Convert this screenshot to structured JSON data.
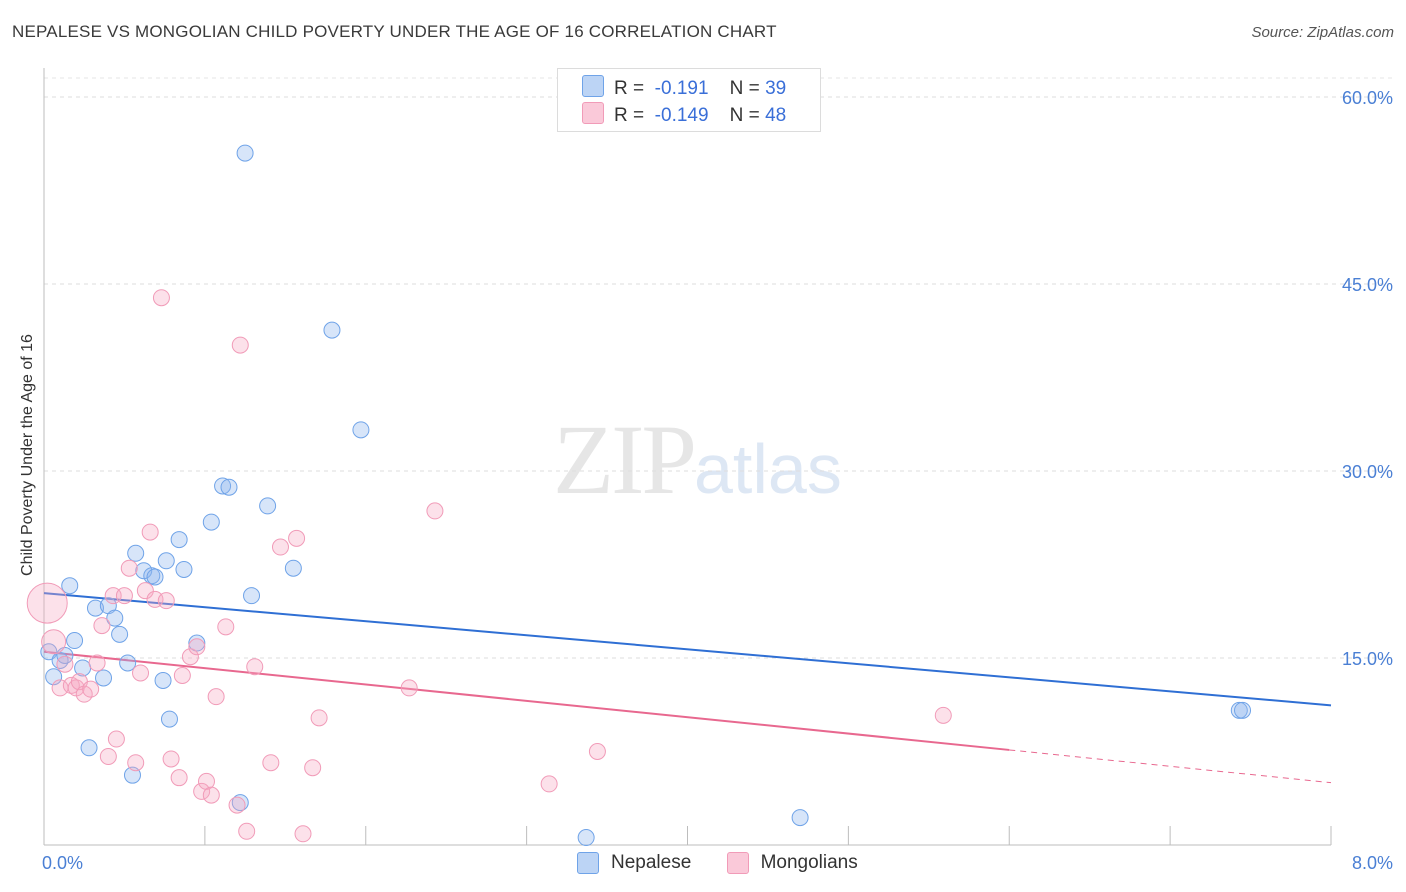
{
  "header": {
    "title": "NEPALESE VS MONGOLIAN CHILD POVERTY UNDER THE AGE OF 16 CORRELATION CHART",
    "source": "Source: ZipAtlas.com"
  },
  "watermark": {
    "zip": "ZIP",
    "atlas": "atlas"
  },
  "legend": {
    "r_label": "R =",
    "n_label": "N =",
    "rows": [
      {
        "r": "-0.191",
        "n": "39"
      },
      {
        "r": "-0.149",
        "n": "48"
      }
    ]
  },
  "chart_data": {
    "type": "scatter",
    "title": "NEPALESE VS MONGOLIAN CHILD POVERTY UNDER THE AGE OF 16 CORRELATION CHART",
    "xlabel": "",
    "ylabel": "Child Poverty Under the Age of 16",
    "xlim": [
      0,
      8
    ],
    "ylim": [
      0,
      60
    ],
    "x_tick_labels": [
      "0.0%",
      "8.0%"
    ],
    "y_ticks": [
      15,
      30,
      45,
      60
    ],
    "y_tick_labels": [
      "15.0%",
      "30.0%",
      "45.0%",
      "60.0%"
    ],
    "grid": true,
    "legend_position": "top-center",
    "colors": {
      "nepalese": "#6fa3e8",
      "mongolians": "#f19bb8",
      "nepalese_line": "#2f6fd4",
      "mongolians_line": "#e8688f"
    },
    "series": [
      {
        "name": "Nepalese",
        "r": -0.191,
        "n": 39,
        "trend": {
          "x0": 0,
          "y0": 20.2,
          "x1": 8,
          "y1": 11.2,
          "solid_until": 8
        },
        "points": [
          [
            0.03,
            15.5
          ],
          [
            0.06,
            13.5
          ],
          [
            0.1,
            14.8
          ],
          [
            0.13,
            15.2
          ],
          [
            0.16,
            20.8
          ],
          [
            0.19,
            16.4
          ],
          [
            0.24,
            14.2
          ],
          [
            0.28,
            7.8
          ],
          [
            0.32,
            19.0
          ],
          [
            0.37,
            13.4
          ],
          [
            0.4,
            19.2
          ],
          [
            0.44,
            18.2
          ],
          [
            0.47,
            16.9
          ],
          [
            0.52,
            14.6
          ],
          [
            0.55,
            5.6
          ],
          [
            0.57,
            23.4
          ],
          [
            0.62,
            22.0
          ],
          [
            0.67,
            21.6
          ],
          [
            0.69,
            21.5
          ],
          [
            0.74,
            13.2
          ],
          [
            0.76,
            22.8
          ],
          [
            0.78,
            10.1
          ],
          [
            0.84,
            24.5
          ],
          [
            0.87,
            22.1
          ],
          [
            0.95,
            16.2
          ],
          [
            1.04,
            25.9
          ],
          [
            1.11,
            28.8
          ],
          [
            1.15,
            28.7
          ],
          [
            1.22,
            3.4
          ],
          [
            1.25,
            55.5
          ],
          [
            1.29,
            20.0
          ],
          [
            1.39,
            27.2
          ],
          [
            1.55,
            22.2
          ],
          [
            1.79,
            41.3
          ],
          [
            1.97,
            33.3
          ],
          [
            3.37,
            0.6
          ],
          [
            4.7,
            2.2
          ],
          [
            7.43,
            10.8
          ],
          [
            7.45,
            10.8
          ]
        ]
      },
      {
        "name": "Mongolians",
        "r": -0.149,
        "n": 48,
        "trend": {
          "x0": 0,
          "y0": 15.5,
          "x1": 8,
          "y1": 5.0,
          "solid_until": 6.0
        },
        "points": [
          [
            0.02,
            19.4
          ],
          [
            0.06,
            16.3
          ],
          [
            0.1,
            12.6
          ],
          [
            0.13,
            14.5
          ],
          [
            0.17,
            12.8
          ],
          [
            0.2,
            12.6
          ],
          [
            0.22,
            13.1
          ],
          [
            0.25,
            12.1
          ],
          [
            0.29,
            12.5
          ],
          [
            0.33,
            14.6
          ],
          [
            0.36,
            17.6
          ],
          [
            0.4,
            7.1
          ],
          [
            0.43,
            20.0
          ],
          [
            0.45,
            8.5
          ],
          [
            0.5,
            20.0
          ],
          [
            0.53,
            22.2
          ],
          [
            0.57,
            6.6
          ],
          [
            0.6,
            13.8
          ],
          [
            0.63,
            20.4
          ],
          [
            0.66,
            25.1
          ],
          [
            0.69,
            19.7
          ],
          [
            0.73,
            43.9
          ],
          [
            0.76,
            19.6
          ],
          [
            0.79,
            6.9
          ],
          [
            0.84,
            5.4
          ],
          [
            0.86,
            13.6
          ],
          [
            0.91,
            15.1
          ],
          [
            0.95,
            15.9
          ],
          [
            0.98,
            4.3
          ],
          [
            1.01,
            5.1
          ],
          [
            1.04,
            4.0
          ],
          [
            1.07,
            11.9
          ],
          [
            1.13,
            17.5
          ],
          [
            1.2,
            3.2
          ],
          [
            1.22,
            40.1
          ],
          [
            1.26,
            1.1
          ],
          [
            1.31,
            14.3
          ],
          [
            1.41,
            6.6
          ],
          [
            1.47,
            23.9
          ],
          [
            1.57,
            24.6
          ],
          [
            1.61,
            0.9
          ],
          [
            1.67,
            6.2
          ],
          [
            1.71,
            10.2
          ],
          [
            2.27,
            12.6
          ],
          [
            2.43,
            26.8
          ],
          [
            3.14,
            4.9
          ],
          [
            3.44,
            7.5
          ],
          [
            5.59,
            10.4
          ]
        ]
      }
    ]
  }
}
